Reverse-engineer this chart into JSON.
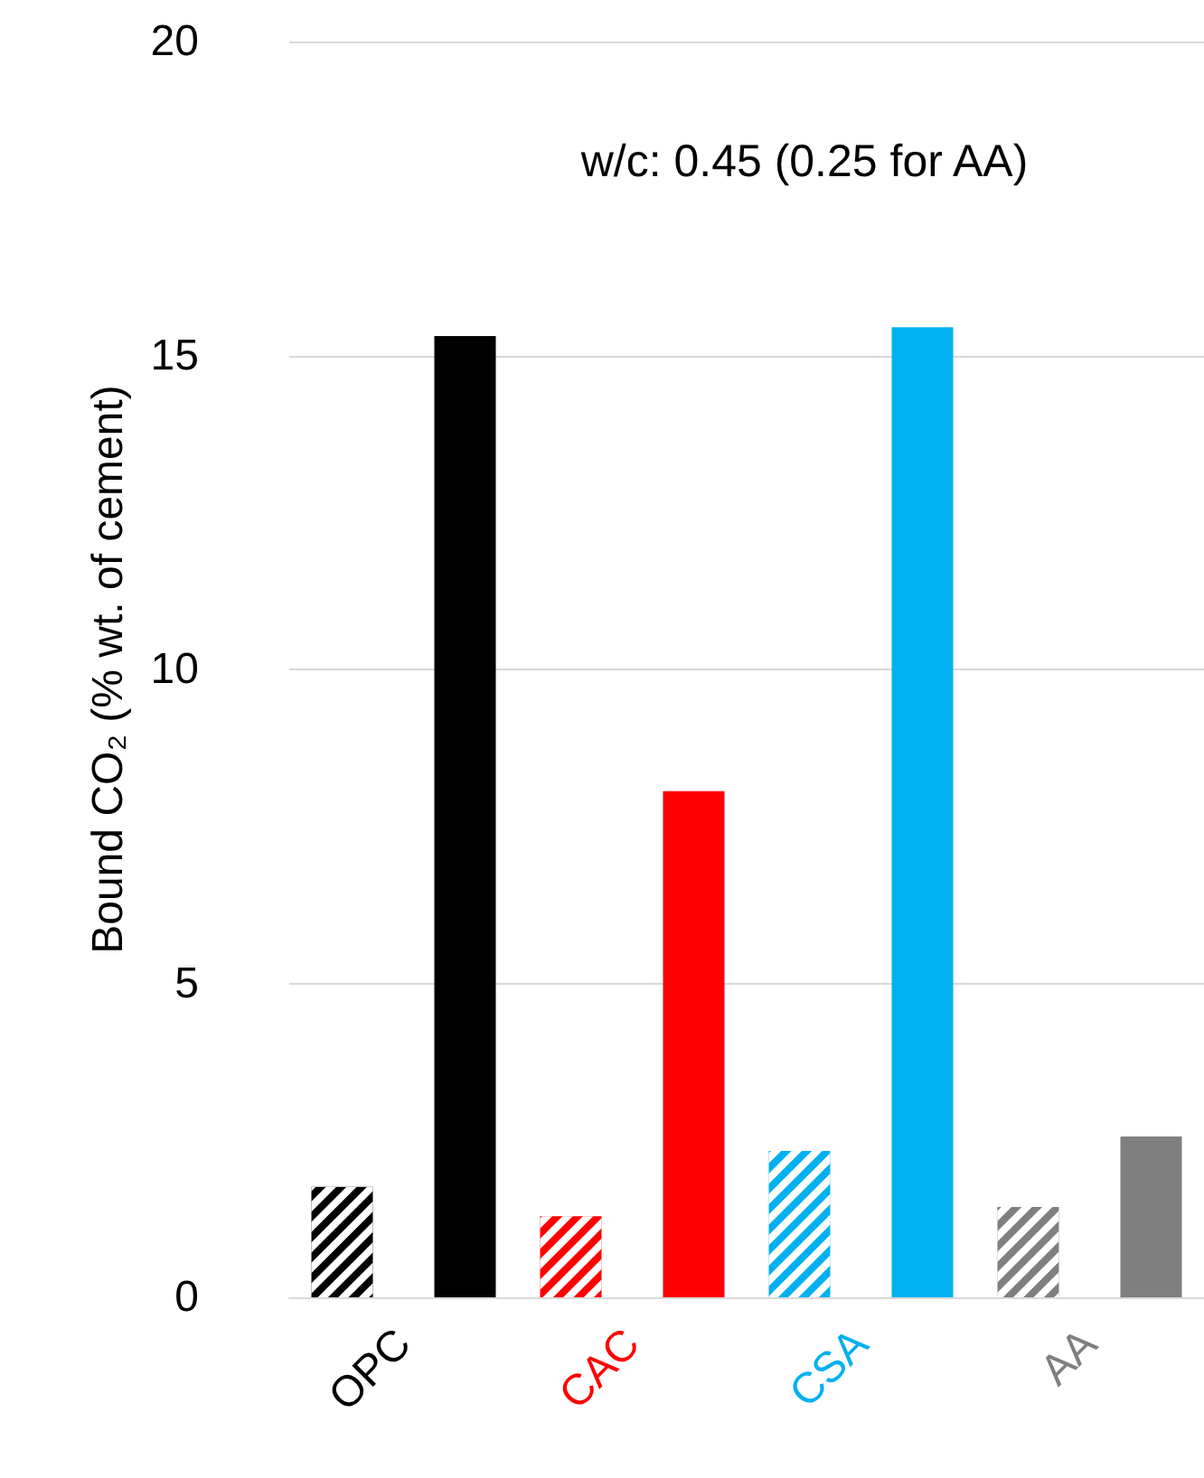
{
  "chart_data": {
    "type": "bar",
    "title": "w/c: 0.45 (0.25 for AA)",
    "ylabel": "Bound CO₂ (% wt. of cement)",
    "categories": [
      "OPC",
      "CAC",
      "CSA",
      "AA"
    ],
    "series": [
      {
        "colors": [
          "#000000",
          "#ff0000",
          "#00b0f0",
          "#7f7f7f"
        ],
        "values": [
          1.76,
          1.29,
          2.33,
          1.44
        ]
      },
      {
        "colors": [
          "#000000",
          "#ff0000",
          "#00b0f0",
          "#7f7f7f"
        ],
        "values": [
          15.31,
          8.06,
          15.45,
          2.56
        ]
      }
    ],
    "ylim": [
      0,
      20
    ],
    "yticks": [
      0,
      5,
      10,
      15,
      20
    ],
    "grid": "y"
  }
}
